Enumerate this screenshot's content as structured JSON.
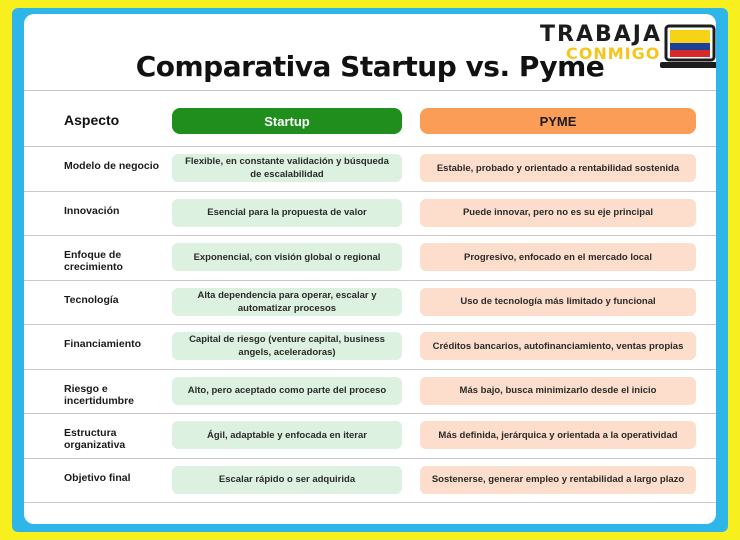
{
  "title": "Comparativa Startup vs. Pyme",
  "logo": {
    "line1": "TRABAJA",
    "line2": "CONMIGO"
  },
  "headers": {
    "aspect": "Aspecto",
    "startup": "Startup",
    "pyme": "PYME"
  },
  "colors": {
    "background": "#f7ef1e",
    "frame": "#2fb6e8",
    "startup_header": "#1f8e1c",
    "pyme_header": "#fb9d56",
    "startup_cell": "#dcf1df",
    "pyme_cell": "#fdddcb"
  },
  "rows": [
    {
      "aspect": "Modelo de negocio",
      "startup": "Flexible, en constante validación y búsqueda de escalabilidad",
      "pyme": "Estable, probado y orientado a rentabilidad sostenida"
    },
    {
      "aspect": "Innovación",
      "startup": "Esencial para la propuesta de valor",
      "pyme": "Puede innovar, pero no es su eje principal"
    },
    {
      "aspect": "Enfoque de crecimiento",
      "startup": "Exponencial, con visión global o regional",
      "pyme": "Progresivo, enfocado en el mercado local"
    },
    {
      "aspect": "Tecnología",
      "startup": "Alta dependencia para operar, escalar y automatizar procesos",
      "pyme": "Uso de tecnología más limitado y funcional"
    },
    {
      "aspect": "Financiamiento",
      "startup": "Capital de riesgo (venture capital, business angels, aceleradoras)",
      "pyme": "Créditos bancarios, autofinanciamiento, ventas propias"
    },
    {
      "aspect": "Riesgo e incertidumbre",
      "startup": "Alto, pero aceptado como parte del proceso",
      "pyme": "Más bajo, busca minimizarlo desde el inicio"
    },
    {
      "aspect": "Estructura organizativa",
      "startup": "Ágil, adaptable y enfocada en iterar",
      "pyme": "Más definida, jerárquica y orientada a la operatividad"
    },
    {
      "aspect": "Objetivo final",
      "startup": "Escalar rápido o ser adquirida",
      "pyme": "Sostenerse, generar empleo y rentabilidad a largo plazo"
    }
  ]
}
